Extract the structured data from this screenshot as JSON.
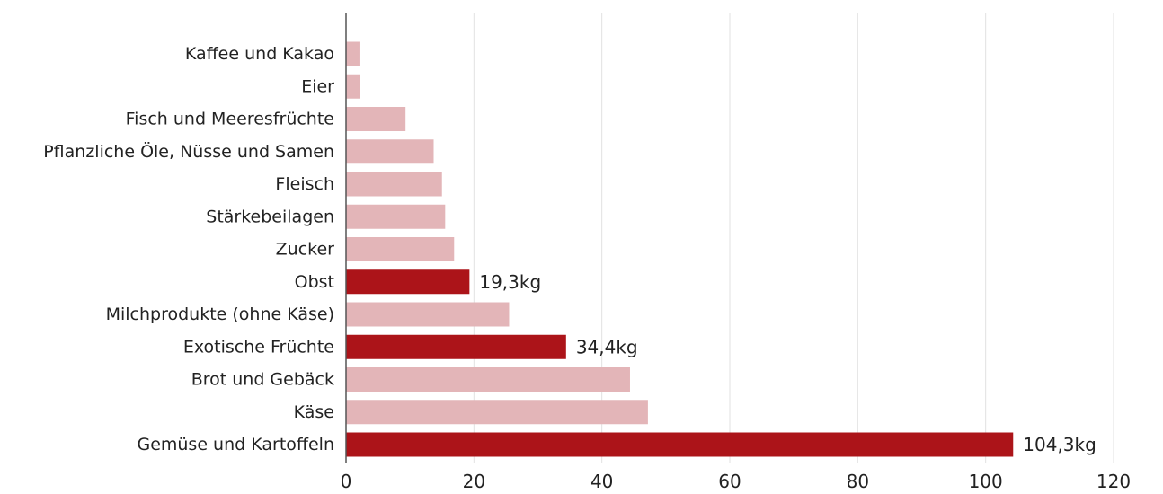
{
  "chart_data": {
    "type": "bar",
    "orientation": "horizontal",
    "categories": [
      "Kaffee und Kakao",
      "Eier",
      "Fisch und Meeresfrüchte",
      "Pflanzliche Öle, Nüsse und Samen",
      "Fleisch",
      "Stärkebeilagen",
      "Zucker",
      "Obst",
      "Milchprodukte (ohne Käse)",
      "Exotische Früchte",
      "Brot und Gebäck",
      "Käse",
      "Gemüse und Kartoffeln"
    ],
    "values": [
      2.1,
      2.2,
      9.3,
      13.7,
      15.0,
      15.5,
      16.9,
      19.3,
      25.5,
      34.4,
      44.4,
      47.2,
      104.3
    ],
    "highlighted": [
      false,
      false,
      false,
      false,
      false,
      false,
      false,
      true,
      false,
      true,
      false,
      false,
      true
    ],
    "data_labels": [
      "",
      "",
      "",
      "",
      "",
      "",
      "",
      "19,3kg",
      "",
      "34,4kg",
      "",
      "",
      "104,3kg"
    ],
    "xlim": [
      0,
      120
    ],
    "xticks": [
      0,
      20,
      40,
      60,
      80,
      100,
      120
    ],
    "xtick_labels": [
      "0",
      "20",
      "40",
      "60",
      "80",
      "100",
      "120"
    ],
    "grid": "vertical",
    "colors": {
      "highlight": "#ac1419",
      "base": "#e3b5b8"
    },
    "title": "",
    "xlabel": "",
    "ylabel": ""
  }
}
